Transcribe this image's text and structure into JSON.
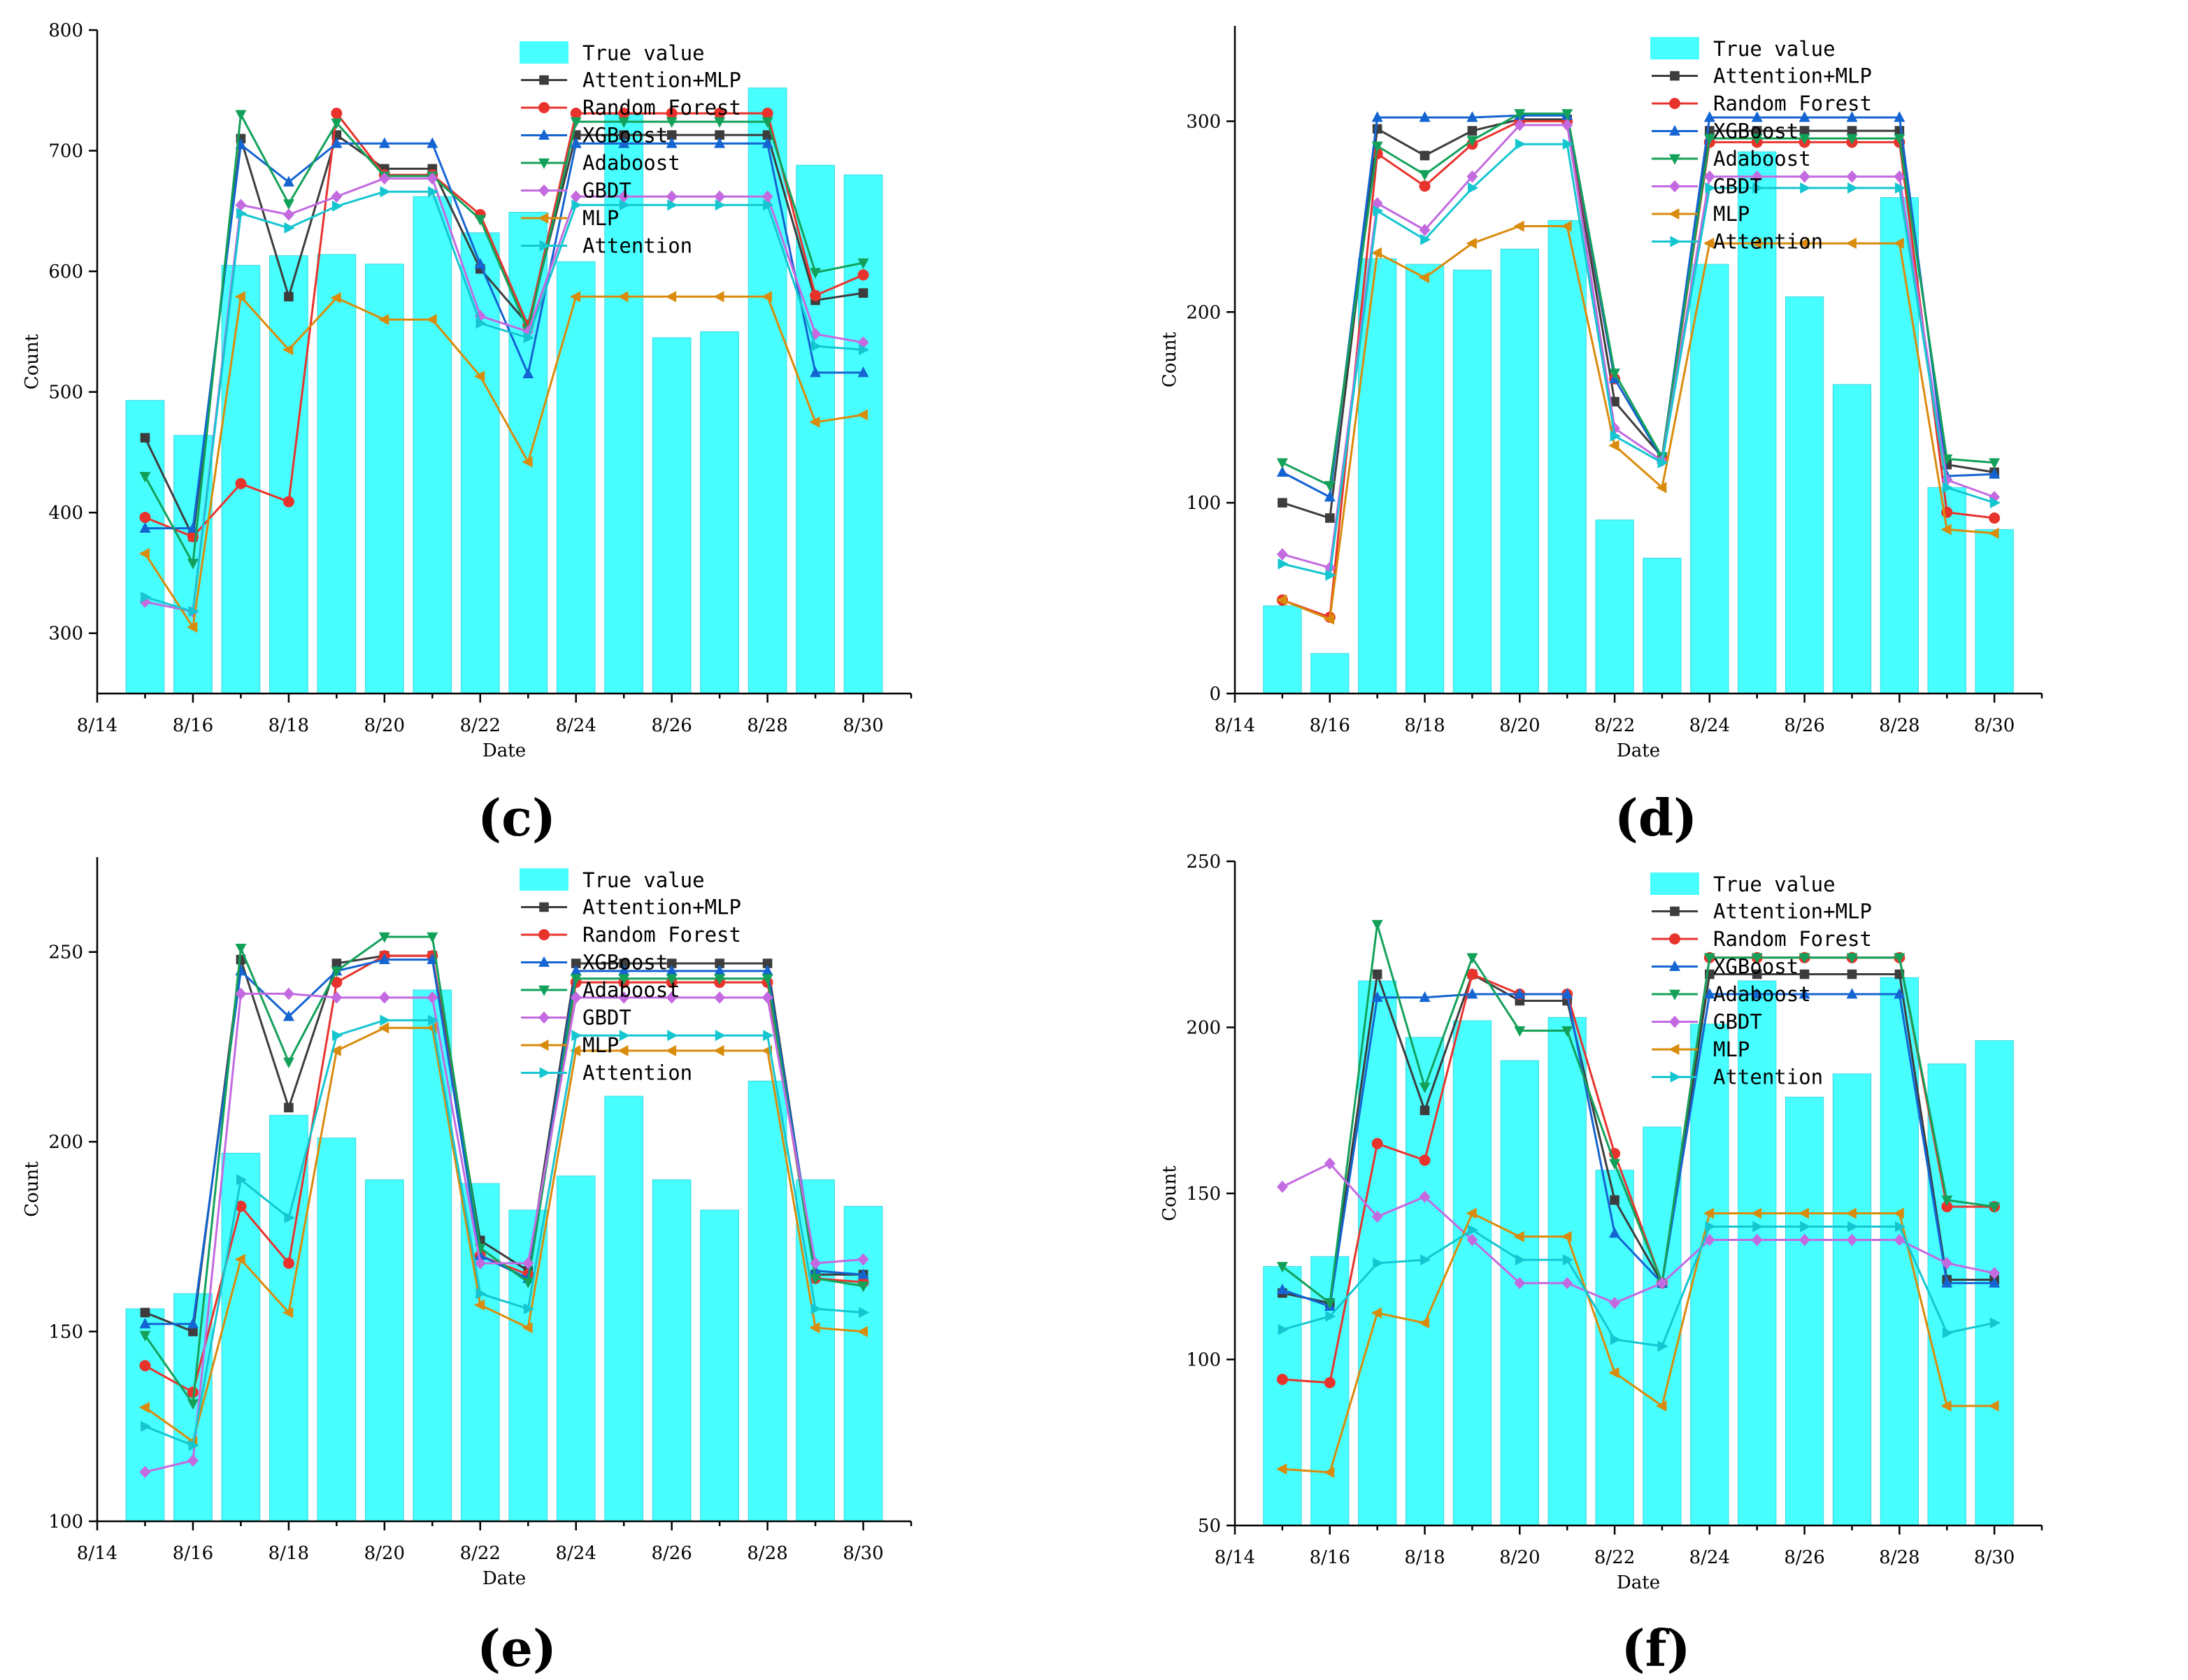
{
  "colors": {
    "bars": "#00ffff",
    "Attention+MLP": "#3d3d3d",
    "Random Forest": "#e8332d",
    "XGBoost": "#1464d2",
    "Adaboost": "#13a15a",
    "GBDT": "#c36ae0",
    "MLP": "#d98b0c",
    "Attention": "#15c6d0"
  },
  "chart_data": [
    {
      "id": "c",
      "label": "(c)",
      "type": "bar+line",
      "xlabel": "Date",
      "ylabel": "Count",
      "ylim": [
        250,
        800
      ],
      "yticks": [
        300,
        400,
        500,
        600,
        700,
        800
      ],
      "xlim": [
        14,
        31
      ],
      "xticks": [
        14,
        16,
        18,
        20,
        22,
        24,
        26,
        28,
        30
      ],
      "xtick_labels": [
        "8/14",
        "8/16",
        "8/18",
        "8/20",
        "8/22",
        "8/24",
        "8/26",
        "8/28",
        "8/30"
      ],
      "x": [
        15,
        16,
        17,
        18,
        19,
        20,
        21,
        22,
        23,
        24,
        25,
        26,
        27,
        28,
        29,
        30
      ],
      "bar_name": "True value",
      "bars": [
        493,
        464,
        605,
        613,
        614,
        606,
        662,
        632,
        649,
        608,
        730,
        545,
        550,
        752,
        688,
        680
      ],
      "series": [
        {
          "name": "Attention+MLP",
          "marker": "square",
          "values": [
            462,
            380,
            710,
            579,
            713,
            685,
            685,
            602,
            556,
            713,
            713,
            713,
            713,
            713,
            576,
            582
          ]
        },
        {
          "name": "Random Forest",
          "marker": "circle",
          "values": [
            396,
            380,
            424,
            409,
            731,
            680,
            680,
            647,
            555,
            731,
            731,
            731,
            731,
            731,
            580,
            597
          ]
        },
        {
          "name": "XGBoost",
          "marker": "triangle-up",
          "values": [
            387,
            387,
            705,
            674,
            706,
            706,
            706,
            606,
            515,
            706,
            706,
            706,
            706,
            706,
            516,
            516
          ]
        },
        {
          "name": "Adaboost",
          "marker": "triangle-down",
          "values": [
            430,
            358,
            730,
            656,
            723,
            679,
            679,
            643,
            551,
            724,
            724,
            724,
            724,
            724,
            599,
            607
          ]
        },
        {
          "name": "GBDT",
          "marker": "diamond",
          "values": [
            326,
            318,
            655,
            647,
            662,
            677,
            677,
            563,
            550,
            662,
            662,
            662,
            662,
            662,
            548,
            541
          ]
        },
        {
          "name": "MLP",
          "marker": "triangle-left",
          "values": [
            366,
            305,
            579,
            535,
            578,
            560,
            560,
            513,
            442,
            579,
            579,
            579,
            579,
            579,
            475,
            481
          ]
        },
        {
          "name": "Attention",
          "marker": "triangle-right",
          "values": [
            330,
            318,
            648,
            636,
            654,
            666,
            666,
            557,
            545,
            655,
            655,
            655,
            655,
            655,
            538,
            535
          ]
        }
      ]
    },
    {
      "id": "d",
      "label": "(d)",
      "type": "bar+line",
      "xlabel": "Date",
      "ylabel": "Count",
      "ylim": [
        0,
        350
      ],
      "yticks": [
        0,
        100,
        200,
        300
      ],
      "xlim": [
        14,
        31
      ],
      "xticks": [
        14,
        16,
        18,
        20,
        22,
        24,
        26,
        28,
        30
      ],
      "xtick_labels": [
        "8/14",
        "8/16",
        "8/18",
        "8/20",
        "8/22",
        "8/24",
        "8/26",
        "8/28",
        "8/30"
      ],
      "x": [
        15,
        16,
        17,
        18,
        19,
        20,
        21,
        22,
        23,
        24,
        25,
        26,
        27,
        28,
        29,
        30
      ],
      "bar_name": "True value",
      "bars": [
        46,
        21,
        228,
        225,
        222,
        233,
        248,
        91,
        71,
        225,
        284,
        208,
        162,
        260,
        108,
        86
      ],
      "series": [
        {
          "name": "Attention+MLP",
          "marker": "square",
          "values": [
            100,
            92,
            296,
            282,
            295,
            301,
            301,
            153,
            124,
            295,
            295,
            295,
            295,
            295,
            120,
            116
          ]
        },
        {
          "name": "Random Forest",
          "marker": "circle",
          "values": [
            49,
            40,
            283,
            266,
            288,
            300,
            300,
            165,
            123,
            289,
            289,
            289,
            289,
            289,
            95,
            92
          ]
        },
        {
          "name": "XGBoost",
          "marker": "triangle-up",
          "values": [
            116,
            103,
            302,
            302,
            302,
            303,
            303,
            165,
            123,
            302,
            302,
            302,
            302,
            302,
            114,
            115
          ]
        },
        {
          "name": "Adaboost",
          "marker": "triangle-down",
          "values": [
            121,
            109,
            287,
            272,
            290,
            304,
            304,
            168,
            124,
            291,
            291,
            291,
            291,
            291,
            123,
            121
          ]
        },
        {
          "name": "GBDT",
          "marker": "diamond",
          "values": [
            73,
            66,
            257,
            243,
            271,
            298,
            298,
            139,
            122,
            271,
            271,
            271,
            271,
            271,
            112,
            103
          ]
        },
        {
          "name": "MLP",
          "marker": "triangle-left",
          "values": [
            49,
            39,
            231,
            218,
            236,
            245,
            245,
            130,
            108,
            236,
            236,
            236,
            236,
            236,
            86,
            84
          ]
        },
        {
          "name": "Attention",
          "marker": "triangle-right",
          "values": [
            68,
            62,
            253,
            238,
            265,
            288,
            288,
            135,
            121,
            265,
            265,
            265,
            265,
            265,
            108,
            100
          ]
        }
      ]
    },
    {
      "id": "e",
      "label": "(e)",
      "type": "bar+line",
      "xlabel": "Date",
      "ylabel": "Count",
      "ylim": [
        100,
        275
      ],
      "yticks": [
        100,
        150,
        200,
        250
      ],
      "xlim": [
        14,
        31
      ],
      "xticks": [
        14,
        16,
        18,
        20,
        22,
        24,
        26,
        28,
        30
      ],
      "xtick_labels": [
        "8/14",
        "8/16",
        "8/18",
        "8/20",
        "8/22",
        "8/24",
        "8/26",
        "8/28",
        "8/30"
      ],
      "x": [
        15,
        16,
        17,
        18,
        19,
        20,
        21,
        22,
        23,
        24,
        25,
        26,
        27,
        28,
        29,
        30
      ],
      "bar_name": "True value",
      "bars": [
        156,
        160,
        197,
        207,
        201,
        190,
        240,
        189,
        182,
        191,
        212,
        190,
        182,
        216,
        190,
        183
      ],
      "series": [
        {
          "name": "Attention+MLP",
          "marker": "square",
          "values": [
            155,
            150,
            248,
            209,
            247,
            249,
            249,
            174,
            166,
            247,
            247,
            247,
            247,
            247,
            165,
            165
          ]
        },
        {
          "name": "Random Forest",
          "marker": "circle",
          "values": [
            141,
            134,
            183,
            168,
            242,
            249,
            249,
            170,
            165,
            242,
            242,
            242,
            242,
            242,
            164,
            163
          ]
        },
        {
          "name": "XGBoost",
          "marker": "triangle-up",
          "values": [
            152,
            152,
            245,
            233,
            245,
            248,
            248,
            170,
            164,
            245,
            245,
            245,
            245,
            245,
            166,
            165
          ]
        },
        {
          "name": "Adaboost",
          "marker": "triangle-down",
          "values": [
            149,
            131,
            251,
            221,
            245,
            254,
            254,
            172,
            163,
            243,
            243,
            243,
            243,
            243,
            164,
            162
          ]
        },
        {
          "name": "GBDT",
          "marker": "diamond",
          "values": [
            113,
            116,
            239,
            239,
            238,
            238,
            238,
            168,
            168,
            238,
            238,
            238,
            238,
            238,
            168,
            169
          ]
        },
        {
          "name": "MLP",
          "marker": "triangle-left",
          "values": [
            130,
            121,
            169,
            155,
            224,
            230,
            230,
            157,
            151,
            224,
            224,
            224,
            224,
            224,
            151,
            150
          ]
        },
        {
          "name": "Attention",
          "marker": "triangle-right",
          "values": [
            125,
            120,
            190,
            180,
            228,
            232,
            232,
            160,
            156,
            228,
            228,
            228,
            228,
            228,
            156,
            155
          ]
        }
      ]
    },
    {
      "id": "f",
      "label": "(f)",
      "type": "bar+line",
      "xlabel": "Date",
      "ylabel": "Count",
      "ylim": [
        50,
        250
      ],
      "yticks": [
        50,
        100,
        150,
        200,
        250
      ],
      "xlim": [
        14,
        31
      ],
      "xticks": [
        14,
        16,
        18,
        20,
        22,
        24,
        26,
        28,
        30
      ],
      "xtick_labels": [
        "8/14",
        "8/16",
        "8/18",
        "8/20",
        "8/22",
        "8/24",
        "8/26",
        "8/28",
        "8/30"
      ],
      "x": [
        15,
        16,
        17,
        18,
        19,
        20,
        21,
        22,
        23,
        24,
        25,
        26,
        27,
        28,
        29,
        30
      ],
      "bar_name": "True value",
      "bars": [
        128,
        131,
        214,
        197,
        202,
        190,
        203,
        157,
        170,
        201,
        214,
        179,
        186,
        215,
        189,
        196
      ],
      "series": [
        {
          "name": "Attention+MLP",
          "marker": "square",
          "values": [
            120,
            117,
            216,
            175,
            216,
            208,
            208,
            148,
            123,
            216,
            216,
            216,
            216,
            216,
            124,
            124
          ]
        },
        {
          "name": "Random Forest",
          "marker": "circle",
          "values": [
            94,
            93,
            165,
            160,
            216,
            210,
            210,
            162,
            123,
            221,
            221,
            221,
            221,
            221,
            146,
            146
          ]
        },
        {
          "name": "XGBoost",
          "marker": "triangle-up",
          "values": [
            121,
            116,
            209,
            209,
            210,
            210,
            210,
            138,
            123,
            210,
            210,
            210,
            210,
            210,
            123,
            123
          ]
        },
        {
          "name": "Adaboost",
          "marker": "triangle-down",
          "values": [
            128,
            117,
            231,
            182,
            221,
            199,
            199,
            159,
            123,
            221,
            221,
            221,
            221,
            221,
            148,
            146
          ]
        },
        {
          "name": "GBDT",
          "marker": "diamond",
          "values": [
            152,
            159,
            143,
            149,
            136,
            123,
            123,
            117,
            123,
            136,
            136,
            136,
            136,
            136,
            129,
            126
          ]
        },
        {
          "name": "MLP",
          "marker": "triangle-left",
          "values": [
            67,
            66,
            114,
            111,
            144,
            137,
            137,
            96,
            86,
            144,
            144,
            144,
            144,
            144,
            86,
            86
          ]
        },
        {
          "name": "Attention",
          "marker": "triangle-right",
          "values": [
            109,
            113,
            129,
            130,
            139,
            130,
            130,
            106,
            104,
            140,
            140,
            140,
            140,
            140,
            108,
            111
          ]
        }
      ]
    }
  ]
}
